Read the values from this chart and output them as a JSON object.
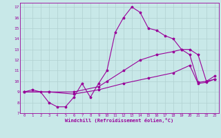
{
  "xlabel": "Windchill (Refroidissement éolien,°C)",
  "ylabel": "",
  "bg_color": "#c8e8e8",
  "line_color": "#990099",
  "grid_color": "#b0d0d0",
  "text_color": "#990099",
  "xlim": [
    -0.5,
    23.5
  ],
  "ylim": [
    7,
    17.4
  ],
  "xticks": [
    0,
    1,
    2,
    3,
    4,
    5,
    6,
    7,
    8,
    9,
    10,
    11,
    12,
    13,
    14,
    15,
    16,
    17,
    18,
    19,
    20,
    21,
    22,
    23
  ],
  "yticks": [
    7,
    8,
    9,
    10,
    11,
    12,
    13,
    14,
    15,
    16,
    17
  ],
  "line1_x": [
    0,
    1,
    2,
    3,
    4,
    5,
    6,
    7,
    8,
    9,
    10,
    11,
    12,
    13,
    14,
    15,
    16,
    17,
    18,
    19,
    20,
    21,
    22,
    23
  ],
  "line1_y": [
    9.0,
    9.2,
    9.0,
    8.0,
    7.6,
    7.6,
    8.5,
    9.8,
    8.5,
    9.8,
    11.0,
    14.6,
    16.0,
    17.0,
    16.5,
    15.0,
    14.8,
    14.3,
    14.0,
    13.0,
    12.5,
    9.9,
    10.0,
    10.2
  ],
  "line2_x": [
    0,
    3,
    6,
    9,
    10,
    12,
    14,
    16,
    18,
    19,
    20,
    21,
    22,
    23
  ],
  "line2_y": [
    9.0,
    9.0,
    9.0,
    9.5,
    10.0,
    11.0,
    12.0,
    12.5,
    12.8,
    13.0,
    13.0,
    12.5,
    10.0,
    10.5
  ],
  "line3_x": [
    0,
    3,
    6,
    9,
    12,
    15,
    18,
    20,
    21,
    22,
    23
  ],
  "line3_y": [
    9.0,
    9.0,
    8.8,
    9.2,
    9.8,
    10.3,
    10.8,
    11.5,
    9.8,
    9.9,
    10.2
  ]
}
